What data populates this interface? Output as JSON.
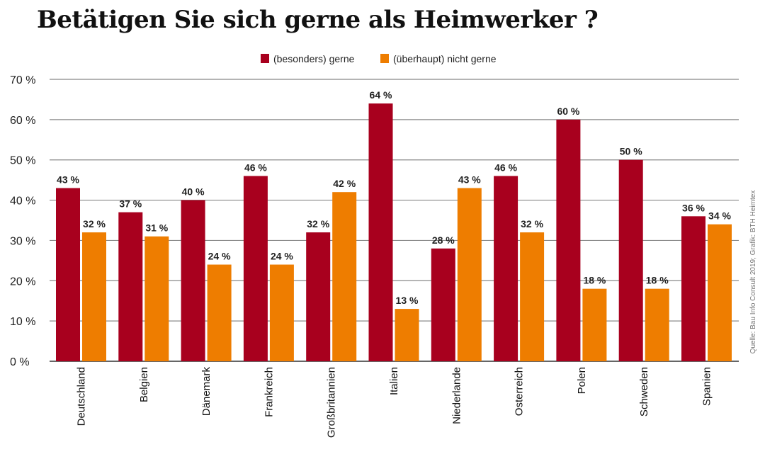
{
  "title": "Betätigen Sie sich gerne als Heimwerker ?",
  "source": "Quelle: Bau Info Consult 2019; Grafik: BTH Heimtex",
  "chart_data": {
    "type": "bar",
    "title": "Betätigen Sie sich gerne als Heimwerker ?",
    "categories": [
      "Deutschland",
      "Belgien",
      "Dänemark",
      "Frankreich",
      "Großbritannien",
      "Italien",
      "Niederlande",
      "Osterreich",
      "Polen",
      "Schweden",
      "Spanien"
    ],
    "series": [
      {
        "name": "(besonders) gerne",
        "color": "#a8001e",
        "values": [
          43,
          37,
          40,
          46,
          32,
          64,
          28,
          46,
          60,
          50,
          36
        ]
      },
      {
        "name": "(überhaupt) nicht gerne",
        "color": "#ee7d00",
        "values": [
          32,
          31,
          24,
          24,
          42,
          13,
          43,
          32,
          18,
          18,
          34
        ]
      }
    ],
    "ylim": [
      0,
      70
    ],
    "yticks": [
      "0 %",
      "10 %",
      "20 %",
      "30 %",
      "40 %",
      "50 %",
      "60 %",
      "70 %"
    ],
    "value_suffix": " %",
    "grid": true,
    "legend": "top-center",
    "xlabel": "",
    "ylabel": ""
  }
}
